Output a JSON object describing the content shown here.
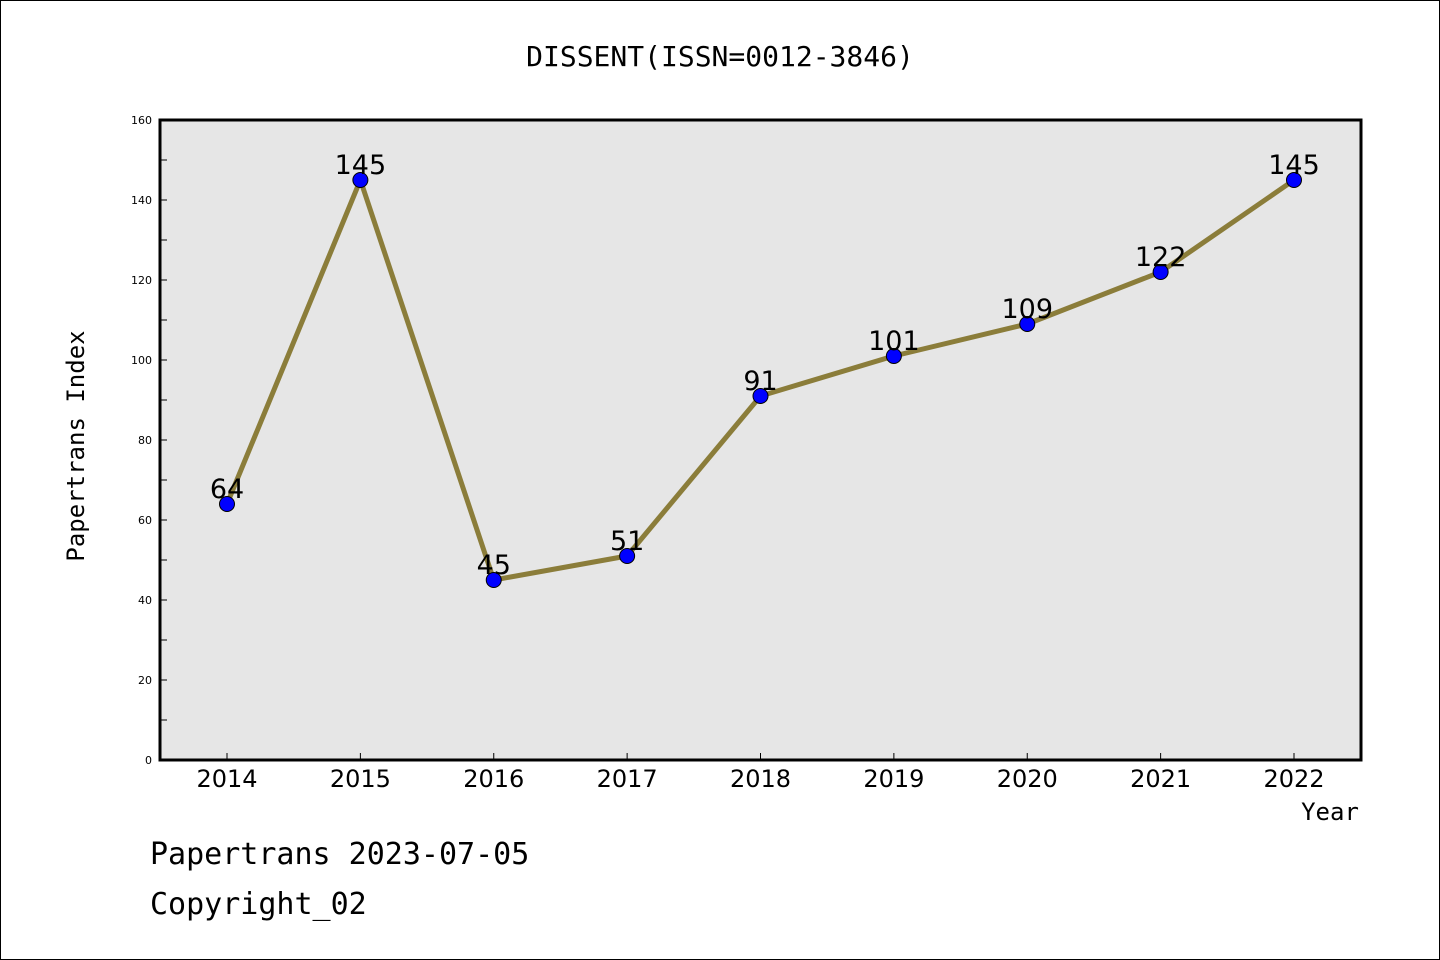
{
  "chart_data": {
    "type": "line",
    "title": "DISSENT(ISSN=0012-3846)",
    "xlabel": "Year",
    "ylabel": "Papertrans Index",
    "categories": [
      "2014",
      "2015",
      "2016",
      "2017",
      "2018",
      "2019",
      "2020",
      "2021",
      "2022"
    ],
    "values": [
      64,
      145,
      45,
      51,
      91,
      101,
      109,
      122,
      145
    ],
    "ylim": [
      0,
      160
    ],
    "yticks": [
      "0",
      "20",
      "40",
      "60",
      "80",
      "100",
      "120",
      "140",
      "160"
    ],
    "grid": false,
    "line_color": "#8b7d3a",
    "marker_color": "#0000ff",
    "plot_background": "#e6e6e6"
  },
  "footer": {
    "line1": "Papertrans 2023-07-05",
    "line2": "Copyright_02"
  }
}
